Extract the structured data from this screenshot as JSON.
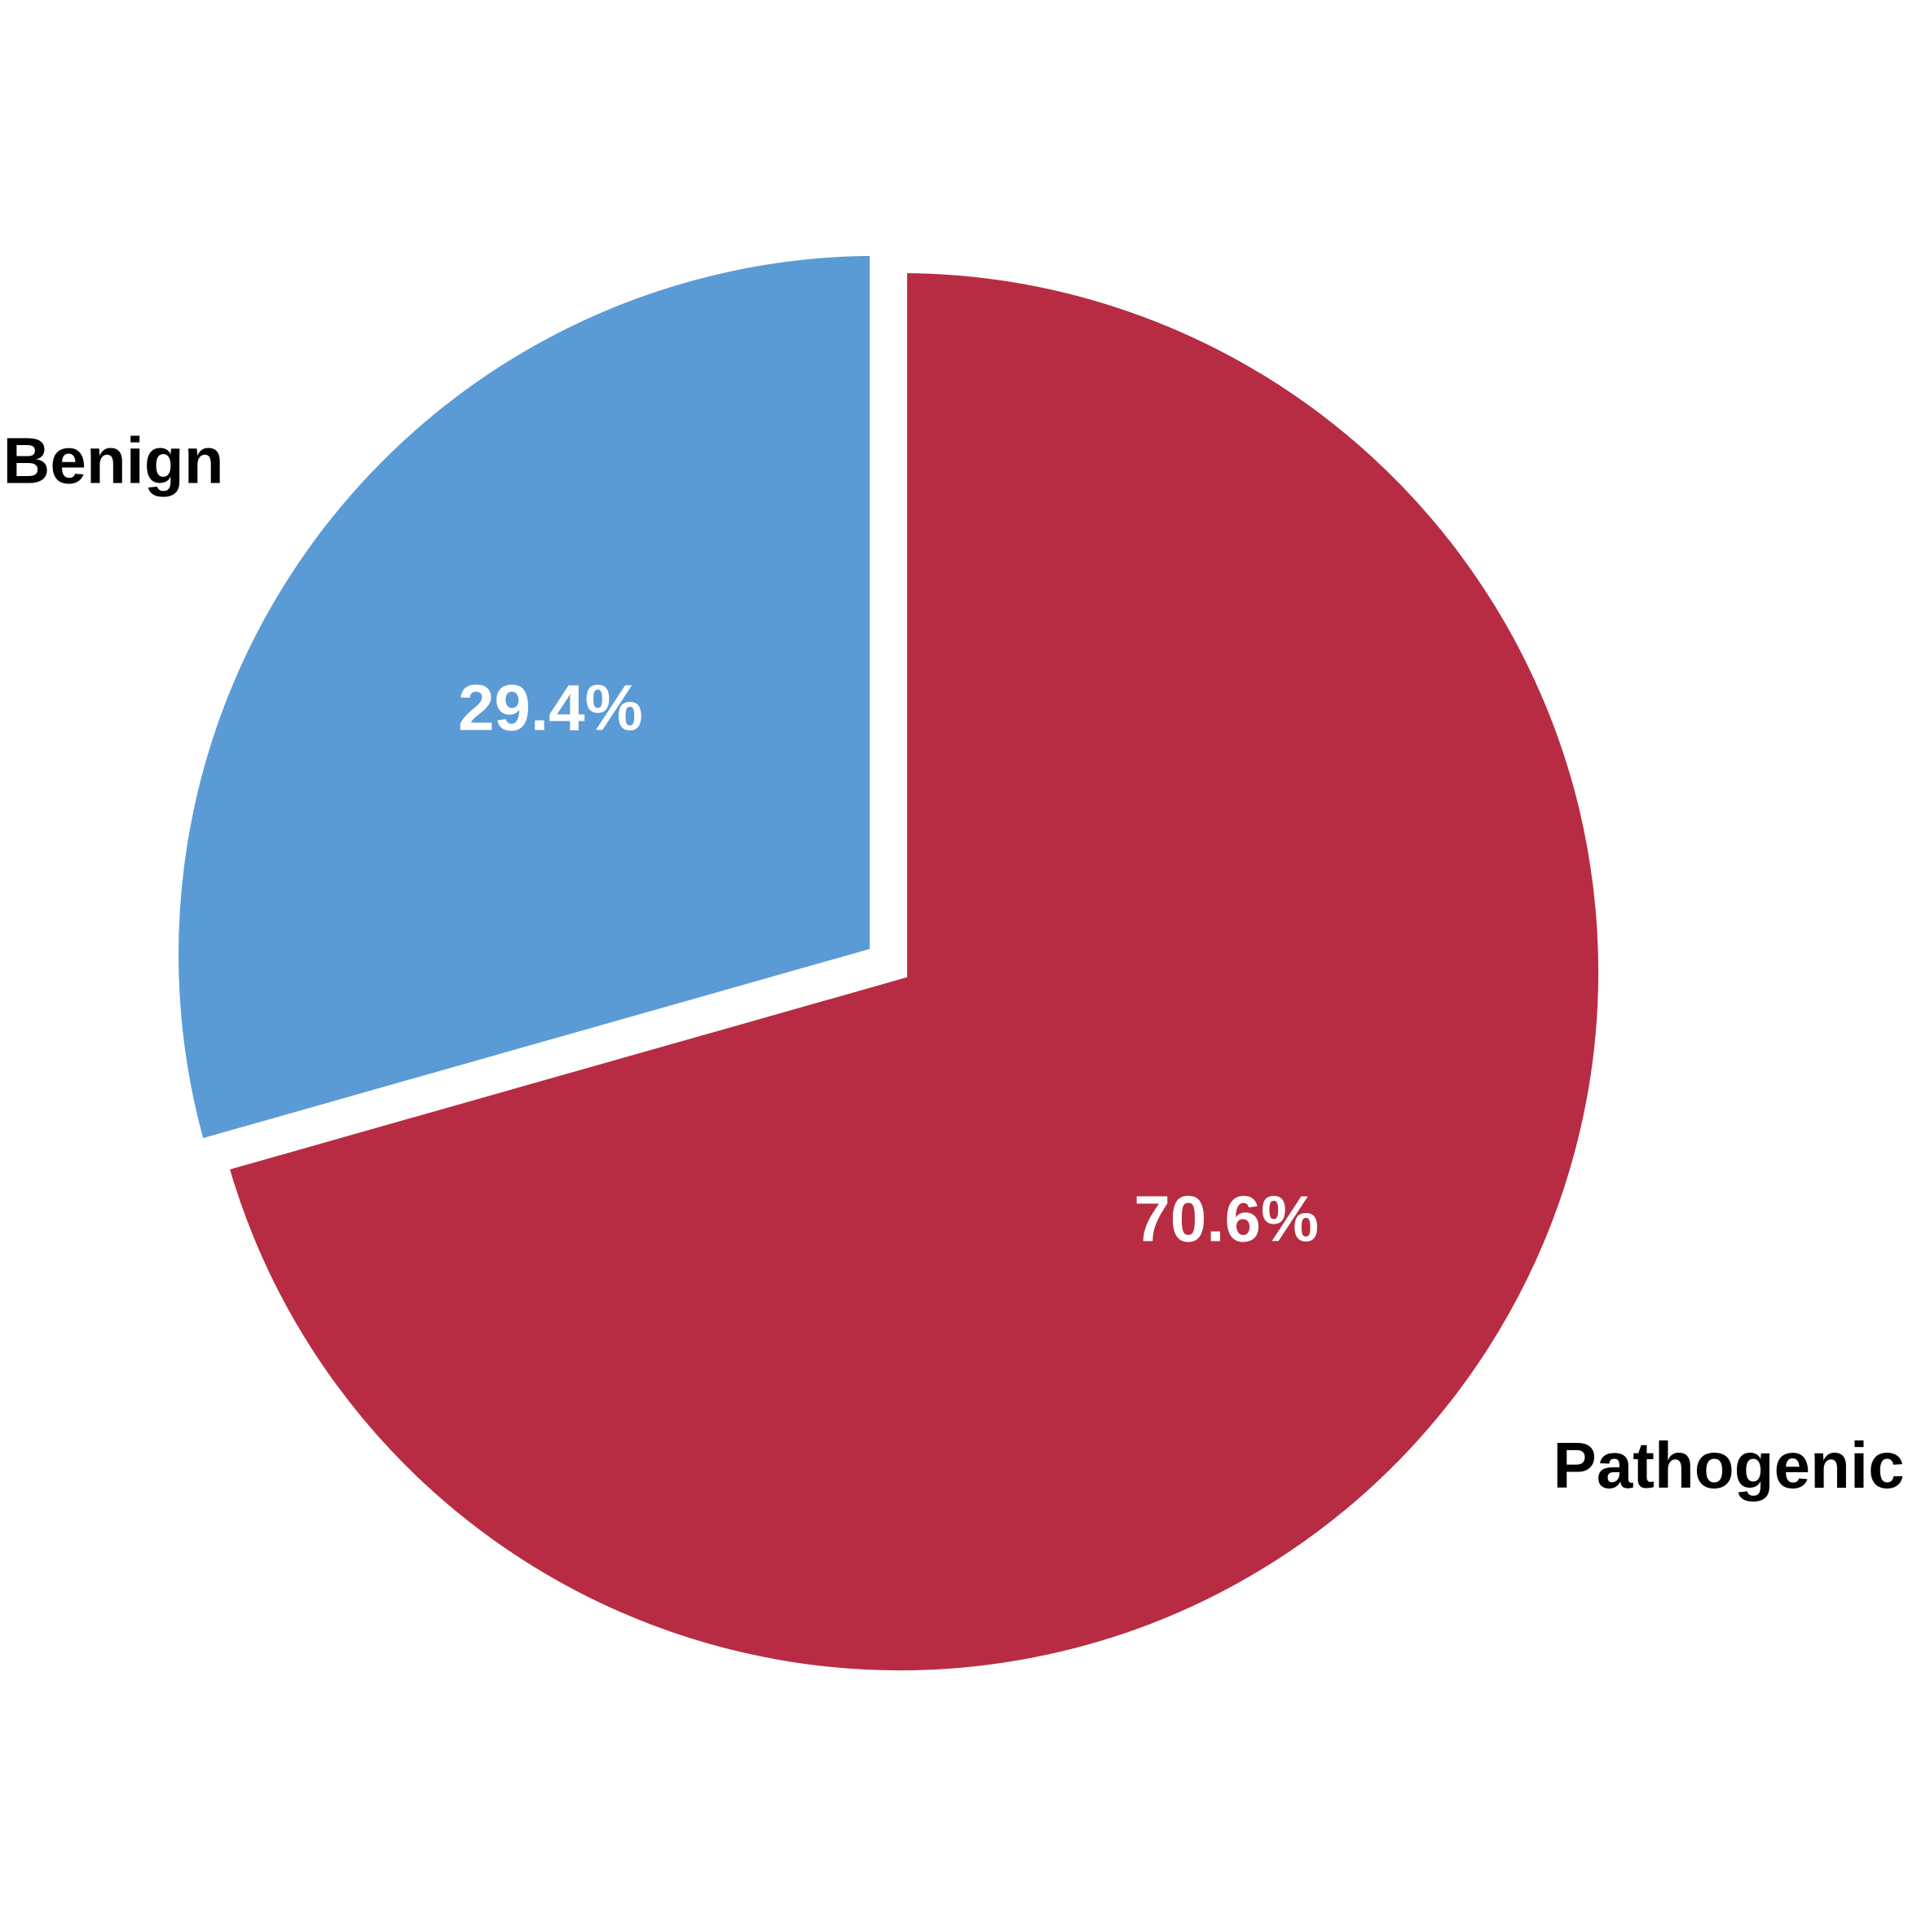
{
  "chart_data": {
    "type": "pie",
    "slices": [
      {
        "label": "Pathogenic",
        "value": 70.6,
        "value_label": "70.6%",
        "color": "#b72c42",
        "exploded": false
      },
      {
        "label": "Benign",
        "value": 29.4,
        "value_label": "29.4%",
        "color": "#5b9bd5",
        "exploded": true
      }
    ],
    "start": "12 o'clock",
    "direction": "clockwise",
    "legend": "none"
  }
}
